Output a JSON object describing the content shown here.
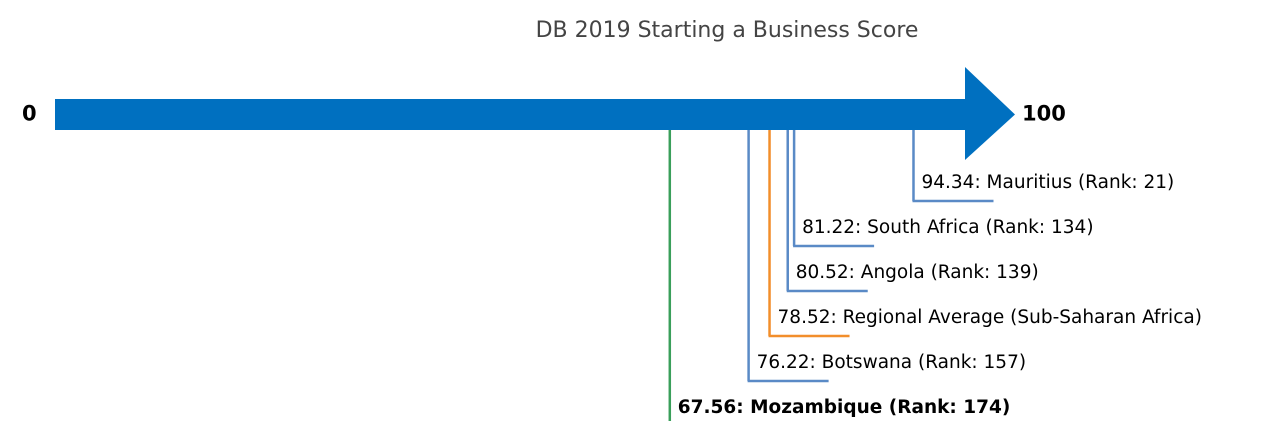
{
  "chart_data": {
    "type": "number_line",
    "title": "DB 2019 Starting a Business Score",
    "xlim": [
      0,
      100
    ],
    "xticks": [
      0,
      100
    ],
    "values": [
      94.34,
      81.22,
      80.52,
      78.52,
      76.22,
      67.56
    ],
    "value_labels": [
      "94.34: Mauritius (Rank: 21)",
      "81.22: South Africa (Rank: 134)",
      "80.52: Angola (Rank: 139)",
      "78.52: Regional Average (Sub-Saharan Africa)",
      "76.22: Botswana (Rank: 157)",
      "67.56: Mozambique (Rank: 174)"
    ],
    "colors": [
      "#5a8ac6",
      "#5a8ac6",
      "#5a8ac6",
      "#f28e2b",
      "#5a8ac6",
      "#3a9f5a"
    ],
    "arrow_color": "#0070c0",
    "bold": [
      false,
      false,
      false,
      false,
      false,
      true
    ]
  }
}
